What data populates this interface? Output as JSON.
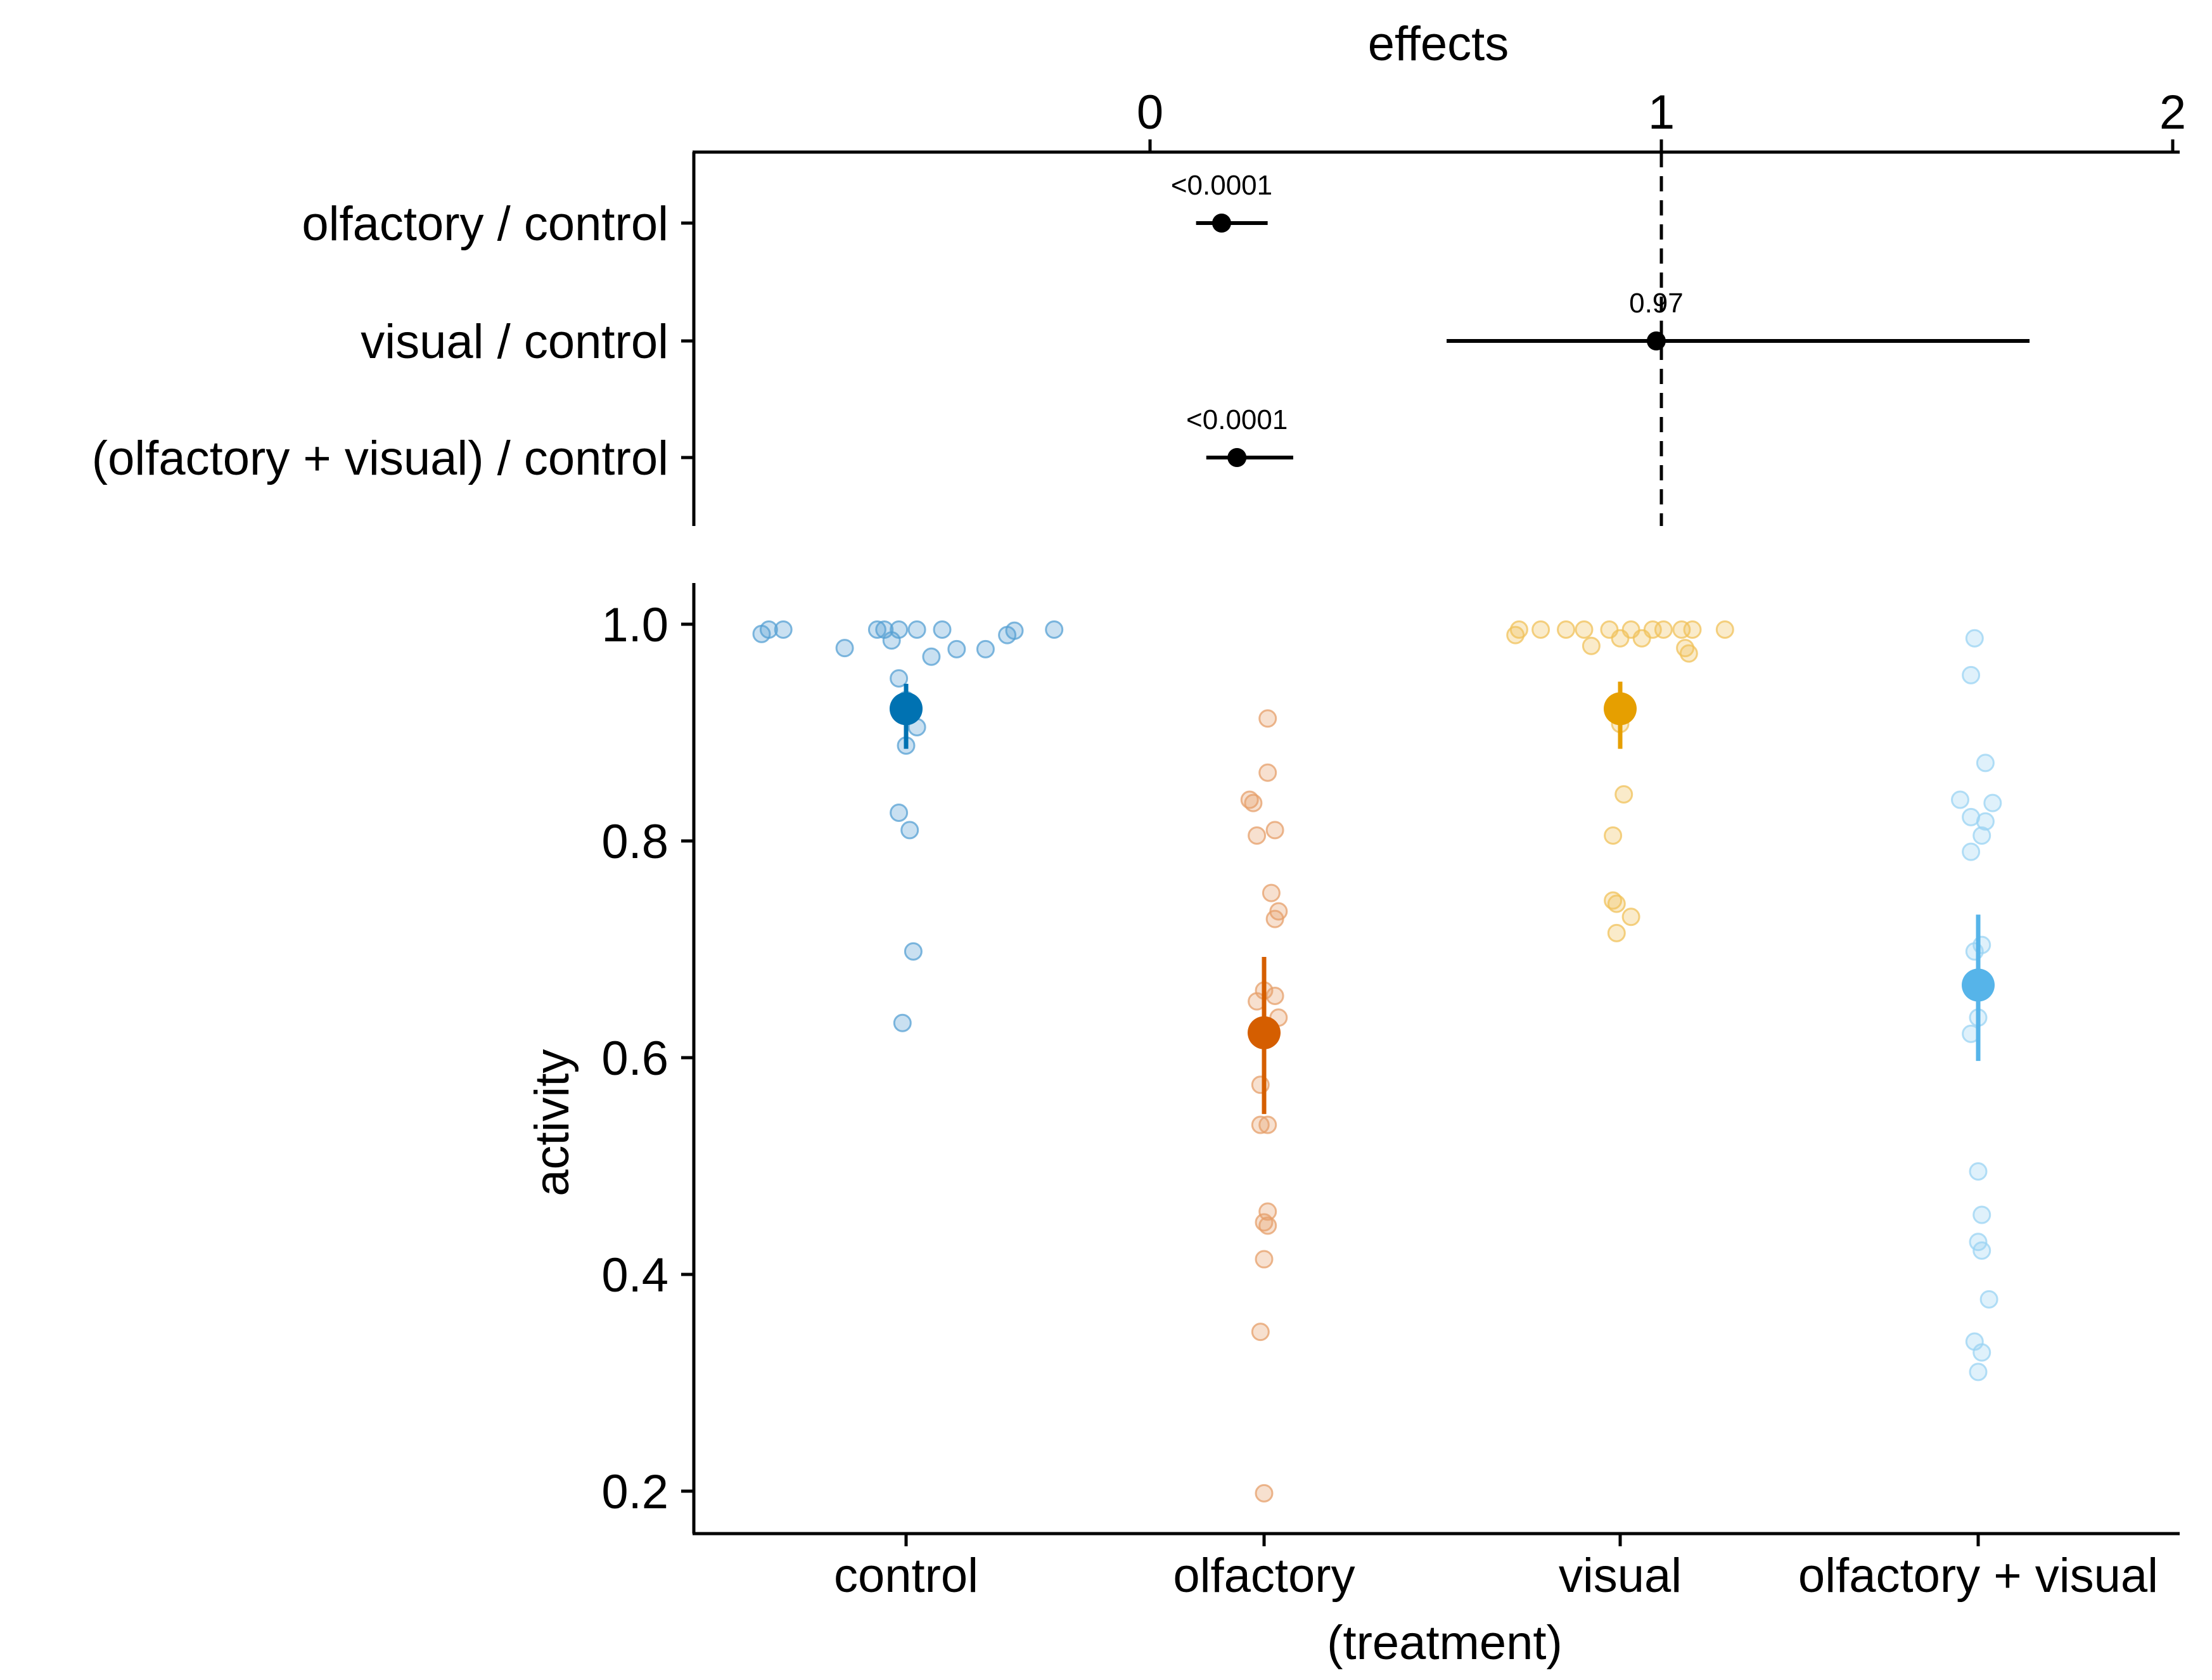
{
  "chart_data": [
    {
      "type": "forest",
      "title": "effects",
      "xlim": [
        -0.9,
        2.0
      ],
      "x_ticks": [
        0,
        1,
        2
      ],
      "reference_line_at": 1,
      "rows": [
        {
          "label": "olfactory / control",
          "estimate": 0.14,
          "lower": 0.09,
          "upper": 0.23,
          "p_label": "<0.0001"
        },
        {
          "label": "visual / control",
          "estimate": 0.99,
          "lower": 0.58,
          "upper": 1.72,
          "p_label": "0.97"
        },
        {
          "label": "(olfactory + visual) / control",
          "estimate": 0.17,
          "lower": 0.11,
          "upper": 0.28,
          "p_label": "<0.0001"
        }
      ]
    },
    {
      "type": "scatter",
      "xlabel": "(treatment)",
      "ylabel": "activity",
      "ylim": [
        0.17,
        1.04
      ],
      "y_ticks": [
        "0.2",
        "0.4",
        "0.6",
        "0.8",
        "1.0"
      ],
      "categories": [
        "control",
        "olfactory",
        "visual",
        "olfactory + visual"
      ],
      "series": [
        {
          "name": "control",
          "color": "#0072B2",
          "light_color": "#56A0D3",
          "mean": 0.922,
          "ci": [
            0.885,
            0.945
          ],
          "points": [
            {
              "dx": -0.4,
              "y": 0.991
            },
            {
              "dx": -0.38,
              "y": 0.995
            },
            {
              "dx": -0.34,
              "y": 0.995
            },
            {
              "dx": -0.17,
              "y": 0.978
            },
            {
              "dx": -0.08,
              "y": 0.995
            },
            {
              "dx": -0.06,
              "y": 0.995
            },
            {
              "dx": -0.04,
              "y": 0.985
            },
            {
              "dx": -0.02,
              "y": 0.995
            },
            {
              "dx": 0.03,
              "y": 0.995
            },
            {
              "dx": 0.07,
              "y": 0.97
            },
            {
              "dx": 0.1,
              "y": 0.995
            },
            {
              "dx": 0.14,
              "y": 0.977
            },
            {
              "dx": 0.22,
              "y": 0.977
            },
            {
              "dx": 0.28,
              "y": 0.99
            },
            {
              "dx": 0.3,
              "y": 0.994
            },
            {
              "dx": 0.41,
              "y": 0.995
            },
            {
              "dx": -0.02,
              "y": 0.95
            },
            {
              "dx": 0.0,
              "y": 0.93
            },
            {
              "dx": 0.03,
              "y": 0.905
            },
            {
              "dx": 0.0,
              "y": 0.888
            },
            {
              "dx": -0.02,
              "y": 0.826
            },
            {
              "dx": 0.01,
              "y": 0.81
            },
            {
              "dx": 0.02,
              "y": 0.698
            },
            {
              "dx": -0.01,
              "y": 0.632
            }
          ]
        },
        {
          "name": "olfactory",
          "color": "#D55E00",
          "light_color": "#E69F6A",
          "mean": 0.623,
          "ci": [
            0.548,
            0.693
          ],
          "points": [
            {
              "dx": 0.01,
              "y": 0.913
            },
            {
              "dx": 0.01,
              "y": 0.863
            },
            {
              "dx": -0.04,
              "y": 0.838
            },
            {
              "dx": -0.03,
              "y": 0.835
            },
            {
              "dx": -0.02,
              "y": 0.805
            },
            {
              "dx": 0.03,
              "y": 0.81
            },
            {
              "dx": 0.02,
              "y": 0.752
            },
            {
              "dx": 0.04,
              "y": 0.735
            },
            {
              "dx": 0.03,
              "y": 0.728
            },
            {
              "dx": -0.02,
              "y": 0.652
            },
            {
              "dx": 0.0,
              "y": 0.662
            },
            {
              "dx": 0.03,
              "y": 0.657
            },
            {
              "dx": 0.04,
              "y": 0.637
            },
            {
              "dx": -0.01,
              "y": 0.575
            },
            {
              "dx": -0.01,
              "y": 0.538
            },
            {
              "dx": 0.01,
              "y": 0.538
            },
            {
              "dx": 0.01,
              "y": 0.458
            },
            {
              "dx": 0.0,
              "y": 0.448
            },
            {
              "dx": 0.01,
              "y": 0.445
            },
            {
              "dx": 0.0,
              "y": 0.414
            },
            {
              "dx": -0.01,
              "y": 0.347
            },
            {
              "dx": 0.0,
              "y": 0.198
            }
          ]
        },
        {
          "name": "visual",
          "color": "#E69F00",
          "light_color": "#F0C25A",
          "mean": 0.922,
          "ci": [
            0.885,
            0.947
          ],
          "points": [
            {
              "dx": -0.29,
              "y": 0.99
            },
            {
              "dx": -0.28,
              "y": 0.995
            },
            {
              "dx": -0.22,
              "y": 0.995
            },
            {
              "dx": -0.15,
              "y": 0.995
            },
            {
              "dx": -0.1,
              "y": 0.995
            },
            {
              "dx": -0.08,
              "y": 0.98
            },
            {
              "dx": -0.03,
              "y": 0.995
            },
            {
              "dx": 0.0,
              "y": 0.987
            },
            {
              "dx": 0.03,
              "y": 0.995
            },
            {
              "dx": 0.06,
              "y": 0.987
            },
            {
              "dx": 0.09,
              "y": 0.995
            },
            {
              "dx": 0.12,
              "y": 0.995
            },
            {
              "dx": 0.17,
              "y": 0.995
            },
            {
              "dx": 0.18,
              "y": 0.978
            },
            {
              "dx": 0.19,
              "y": 0.973
            },
            {
              "dx": 0.2,
              "y": 0.995
            },
            {
              "dx": 0.29,
              "y": 0.995
            },
            {
              "dx": 0.0,
              "y": 0.908
            },
            {
              "dx": 0.01,
              "y": 0.843
            },
            {
              "dx": -0.02,
              "y": 0.805
            },
            {
              "dx": -0.02,
              "y": 0.745
            },
            {
              "dx": -0.01,
              "y": 0.742
            },
            {
              "dx": 0.03,
              "y": 0.73
            },
            {
              "dx": -0.01,
              "y": 0.715
            }
          ]
        },
        {
          "name": "olfactory + visual",
          "color": "#56B4E9",
          "light_color": "#9AD3F3",
          "mean": 0.667,
          "ci": [
            0.597,
            0.732
          ],
          "points": [
            {
              "dx": -0.01,
              "y": 0.987
            },
            {
              "dx": -0.02,
              "y": 0.953
            },
            {
              "dx": 0.02,
              "y": 0.872
            },
            {
              "dx": -0.05,
              "y": 0.838
            },
            {
              "dx": 0.04,
              "y": 0.835
            },
            {
              "dx": -0.02,
              "y": 0.822
            },
            {
              "dx": 0.02,
              "y": 0.818
            },
            {
              "dx": 0.01,
              "y": 0.805
            },
            {
              "dx": -0.02,
              "y": 0.79
            },
            {
              "dx": -0.01,
              "y": 0.698
            },
            {
              "dx": 0.01,
              "y": 0.704
            },
            {
              "dx": 0.0,
              "y": 0.637
            },
            {
              "dx": -0.02,
              "y": 0.622
            },
            {
              "dx": 0.0,
              "y": 0.495
            },
            {
              "dx": 0.01,
              "y": 0.455
            },
            {
              "dx": 0.0,
              "y": 0.43
            },
            {
              "dx": 0.01,
              "y": 0.422
            },
            {
              "dx": 0.03,
              "y": 0.377
            },
            {
              "dx": -0.01,
              "y": 0.338
            },
            {
              "dx": 0.01,
              "y": 0.328
            },
            {
              "dx": 0.0,
              "y": 0.31
            }
          ]
        }
      ]
    }
  ]
}
